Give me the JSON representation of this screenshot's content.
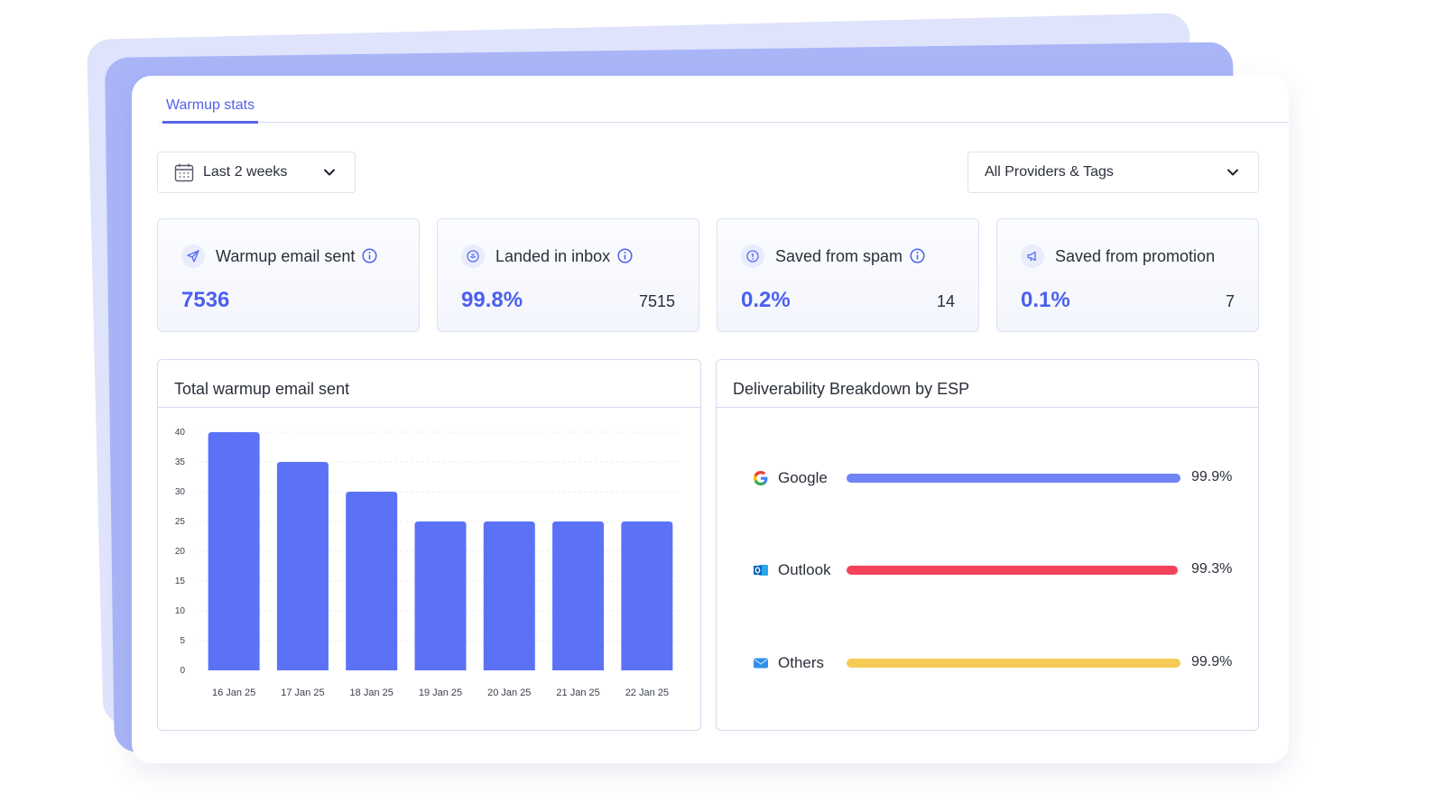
{
  "tabs": [
    {
      "label": "Warmup stats",
      "active": true
    }
  ],
  "filters": {
    "date_range": {
      "selected": "Last 2 weeks"
    },
    "providers": {
      "selected": "All Providers & Tags"
    }
  },
  "stats": [
    {
      "label": "Warmup email sent",
      "value": "7536",
      "count": "",
      "icon": "paper-plane-icon"
    },
    {
      "label": "Landed in inbox",
      "value": "99.8%",
      "count": "7515",
      "icon": "inbox-icon"
    },
    {
      "label": "Saved from spam",
      "value": "0.2%",
      "count": "14",
      "icon": "alert-circle-icon"
    },
    {
      "label": "Saved from promotion",
      "value": "0.1%",
      "count": "7",
      "icon": "megaphone-icon"
    }
  ],
  "chart_panel": {
    "title": "Total warmup email sent"
  },
  "chart_data": {
    "type": "bar",
    "categories": [
      "16 Jan 25",
      "17 Jan 25",
      "18 Jan 25",
      "19 Jan 25",
      "20 Jan 25",
      "21 Jan 25",
      "22 Jan 25"
    ],
    "values": [
      40,
      35,
      30,
      25,
      25,
      25,
      25
    ],
    "yticks": [
      0,
      5,
      10,
      15,
      20,
      25,
      30,
      35,
      40
    ],
    "ylim": [
      0,
      40
    ],
    "color": "#5b72f7",
    "grid": true
  },
  "esp_panel": {
    "title": "Deliverability Breakdown by ESP",
    "rows": [
      {
        "name": "Google",
        "value": "99.9%",
        "pct": 99.9,
        "color": "#6f84f5",
        "icon": "google-icon"
      },
      {
        "name": "Outlook",
        "value": "99.3%",
        "pct": 99.3,
        "color": "#f2435a",
        "icon": "outlook-icon"
      },
      {
        "name": "Others",
        "value": "99.9%",
        "pct": 99.9,
        "color": "#f5cb55",
        "icon": "mail-icon"
      }
    ]
  },
  "colors": {
    "accent": "#4b5ff0",
    "border": "#d6dcef"
  }
}
